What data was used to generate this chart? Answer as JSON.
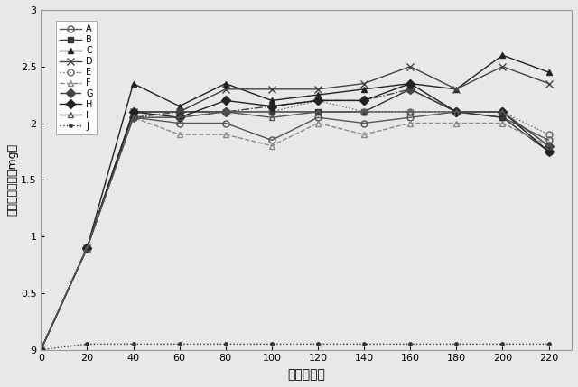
{
  "x": [
    0,
    20,
    40,
    60,
    80,
    100,
    120,
    140,
    160,
    180,
    200,
    220
  ],
  "series": {
    "A": [
      0.0,
      0.9,
      2.05,
      2.0,
      2.0,
      1.85,
      2.05,
      2.0,
      2.05,
      2.1,
      2.05,
      1.85
    ],
    "B": [
      0.0,
      0.9,
      2.1,
      2.1,
      2.1,
      2.1,
      2.1,
      2.1,
      2.3,
      2.1,
      2.05,
      1.75
    ],
    "C": [
      0.0,
      0.9,
      2.35,
      2.15,
      2.35,
      2.2,
      2.25,
      2.3,
      2.35,
      2.3,
      2.6,
      2.45
    ],
    "D": [
      0.0,
      0.9,
      2.1,
      2.1,
      2.3,
      2.3,
      2.3,
      2.35,
      2.5,
      2.3,
      2.5,
      2.35
    ],
    "E": [
      0.0,
      0.9,
      2.05,
      2.05,
      2.1,
      2.1,
      2.2,
      2.1,
      2.1,
      2.1,
      2.1,
      1.9
    ],
    "F": [
      0.0,
      0.9,
      2.05,
      1.9,
      1.9,
      1.8,
      2.0,
      1.9,
      2.0,
      2.0,
      2.0,
      1.8
    ],
    "G": [
      0.0,
      0.9,
      2.05,
      2.1,
      2.1,
      2.15,
      2.2,
      2.2,
      2.3,
      2.1,
      2.1,
      1.8
    ],
    "H": [
      0.0,
      0.9,
      2.1,
      2.05,
      2.2,
      2.15,
      2.2,
      2.2,
      2.35,
      2.1,
      2.1,
      1.75
    ],
    "I": [
      0.0,
      0.9,
      2.05,
      2.05,
      2.1,
      2.05,
      2.1,
      2.1,
      2.1,
      2.1,
      2.1,
      1.8
    ],
    "J": [
      0.0,
      0.05,
      0.05,
      0.05,
      0.05,
      0.05,
      0.05,
      0.05,
      0.05,
      0.05,
      0.05,
      0.05
    ]
  },
  "styles": {
    "A": {
      "color": "#555555",
      "marker": "o",
      "fillstyle": "none",
      "linestyle": "-"
    },
    "B": {
      "color": "#333333",
      "marker": "s",
      "fillstyle": "full",
      "linestyle": "-"
    },
    "C": {
      "color": "#222222",
      "marker": "^",
      "fillstyle": "full",
      "linestyle": "-"
    },
    "D": {
      "color": "#444444",
      "marker": "x",
      "fillstyle": "full",
      "linestyle": "-"
    },
    "E": {
      "color": "#666666",
      "marker": "o",
      "fillstyle": "none",
      "linestyle": ":"
    },
    "F": {
      "color": "#888888",
      "marker": "^",
      "fillstyle": "none",
      "linestyle": "--"
    },
    "G": {
      "color": "#444444",
      "marker": "D",
      "fillstyle": "full",
      "linestyle": "-."
    },
    "H": {
      "color": "#222222",
      "marker": "D",
      "fillstyle": "full",
      "linestyle": "-"
    },
    "I": {
      "color": "#555555",
      "marker": "^",
      "fillstyle": "none",
      "linestyle": "-"
    },
    "J": {
      "color": "#333333",
      "marker": ".",
      "fillstyle": "full",
      "linestyle": ":"
    }
  },
  "xlabel": "時間（分）",
  "ylabel": "総血糖レベル（mg）",
  "ylim": [
    0,
    3.0
  ],
  "xlim": [
    0,
    230
  ],
  "yticks": [
    0,
    0.5,
    1.0,
    1.5,
    2.0,
    2.5,
    3.0
  ],
  "xticks": [
    0,
    20,
    40,
    60,
    80,
    100,
    120,
    140,
    160,
    180,
    200,
    220
  ],
  "background_color": "#e8e8e8",
  "title": ""
}
